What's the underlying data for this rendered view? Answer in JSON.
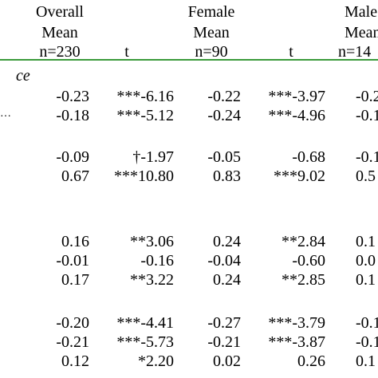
{
  "colors": {
    "rule": "#3a9a3a",
    "text": "#000000"
  },
  "header": {
    "overall": {
      "line1": "Overall",
      "line2": "Mean",
      "n": "n=230"
    },
    "t1": "t",
    "female": {
      "line1": "Female",
      "line2": "Mean",
      "n": "n=90"
    },
    "t2": "t",
    "male": {
      "line1": "Male",
      "line2": "Mean",
      "n": "n=14"
    }
  },
  "sections": [
    {
      "label": "ce",
      "italic": true
    },
    {
      "label": "…",
      "italic": false
    }
  ],
  "rows": [
    {
      "overall": "-0.23",
      "t1": "***-6.16",
      "female": "-0.22",
      "t2": "***-3.97",
      "male": "-0.2"
    },
    {
      "overall": "-0.18",
      "t1": "***-5.12",
      "female": "-0.24",
      "t2": "***-4.96",
      "male": "-0.1"
    },
    {
      "overall": "-0.09",
      "t1": "†-1.97",
      "female": "-0.05",
      "t2": "-0.68",
      "male": "-0.1"
    },
    {
      "overall": "0.67",
      "t1": "***10.80",
      "female": "0.83",
      "t2": "***9.02",
      "male": "0.5"
    },
    {
      "overall": "0.16",
      "t1": "**3.06",
      "female": "0.24",
      "t2": "**2.84",
      "male": "0.1"
    },
    {
      "overall": "-0.01",
      "t1": "-0.16",
      "female": "-0.04",
      "t2": "-0.60",
      "male": "0.0"
    },
    {
      "overall": "0.17",
      "t1": "**3.22",
      "female": "0.24",
      "t2": "**2.85",
      "male": "0.1"
    },
    {
      "overall": "-0.20",
      "t1": "***-4.41",
      "female": "-0.27",
      "t2": "***-3.79",
      "male": "-0.1"
    },
    {
      "overall": "-0.21",
      "t1": "***-5.73",
      "female": "-0.21",
      "t2": "***-3.87",
      "male": "-0.1"
    },
    {
      "overall": "0.12",
      "t1": "*2.20",
      "female": "0.02",
      "t2": "0.26",
      "male": "0.1"
    }
  ]
}
